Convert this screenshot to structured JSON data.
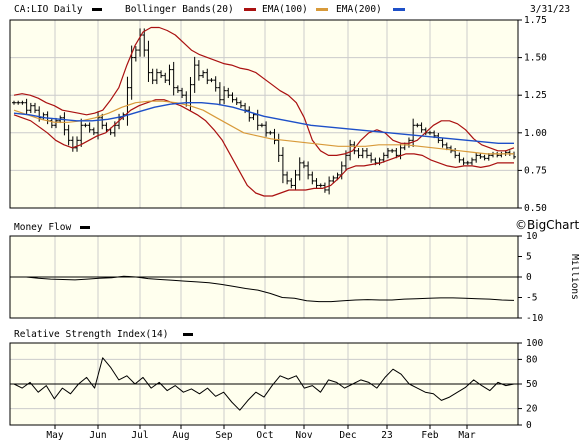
{
  "header": {
    "symbol_label": "CA:LIO Daily",
    "bb_label": "Bollinger Bands(20)",
    "ema100_label": "EMA(100)",
    "ema200_label": "EMA(200)",
    "date_label": "3/31/23"
  },
  "watermark": "©BigCharts.com",
  "colors": {
    "background": "#ffffee",
    "price": "#000000",
    "bollinger": "#aa1111",
    "ema100": "#d89a3a",
    "ema200": "#1e50c8",
    "frame": "#000000",
    "grid": "#cccccc"
  },
  "chart_data": [
    {
      "type": "line",
      "title": "CA:LIO Daily",
      "x_ticks": [
        "May",
        "Jun",
        "Jul",
        "Aug",
        "Sep",
        "Oct",
        "Nov",
        "Dec",
        "23",
        "Feb",
        "Mar"
      ],
      "y_ticks": [
        "1.75",
        "1.50",
        "1.25",
        "1.00",
        "0.75",
        "0.50"
      ],
      "ylim": [
        0.5,
        1.75
      ],
      "series": [
        {
          "name": "CA:LIO Daily",
          "style": "ohlc-bars",
          "values": [
            1.2,
            1.2,
            1.2,
            1.15,
            1.18,
            1.15,
            1.1,
            1.12,
            1.08,
            1.05,
            1.08,
            1.1,
            1.02,
            0.95,
            0.9,
            0.95,
            1.05,
            1.05,
            1.02,
            1.0,
            1.1,
            1.05,
            1.02,
            1.0,
            1.05,
            1.1,
            1.12,
            1.3,
            1.5,
            1.55,
            1.65,
            1.55,
            1.4,
            1.35,
            1.4,
            1.38,
            1.35,
            1.42,
            1.3,
            1.28,
            1.25,
            1.2,
            1.32,
            1.45,
            1.38,
            1.4,
            1.35,
            1.35,
            1.3,
            1.22,
            1.28,
            1.25,
            1.22,
            1.2,
            1.18,
            1.15,
            1.1,
            1.12,
            1.05,
            1.05,
            1.0,
            1.0,
            0.95,
            0.85,
            0.72,
            0.68,
            0.65,
            0.72,
            0.8,
            0.78,
            0.72,
            0.68,
            0.65,
            0.65,
            0.62,
            0.68,
            0.7,
            0.72,
            0.78,
            0.85,
            0.92,
            0.88,
            0.85,
            0.88,
            0.85,
            0.82,
            0.8,
            0.82,
            0.85,
            0.88,
            0.88,
            0.85,
            0.9,
            0.92,
            0.95,
            1.05,
            1.05,
            1.02,
            1.0,
            1.0,
            0.98,
            0.95,
            0.92,
            0.9,
            0.88,
            0.85,
            0.82,
            0.8,
            0.8,
            0.82,
            0.85,
            0.84,
            0.83,
            0.85,
            0.86,
            0.85,
            0.86,
            0.87,
            0.86,
            0.84
          ]
        },
        {
          "name": "Bollinger Bands(20) upper",
          "values": [
            1.25,
            1.26,
            1.25,
            1.23,
            1.2,
            1.18,
            1.15,
            1.14,
            1.13,
            1.12,
            1.13,
            1.15,
            1.22,
            1.3,
            1.45,
            1.58,
            1.67,
            1.7,
            1.7,
            1.68,
            1.65,
            1.6,
            1.55,
            1.52,
            1.5,
            1.48,
            1.46,
            1.45,
            1.43,
            1.42,
            1.4,
            1.36,
            1.32,
            1.28,
            1.25,
            1.2,
            1.1,
            0.95,
            0.88,
            0.85,
            0.85,
            0.86,
            0.88,
            0.95,
            1.0,
            1.02,
            1.0,
            0.95,
            0.93,
            0.93,
            0.95,
            1.0,
            1.05,
            1.08,
            1.08,
            1.06,
            1.02,
            0.96,
            0.92,
            0.9,
            0.88,
            0.88,
            0.9
          ]
        },
        {
          "name": "Bollinger Bands(20) lower",
          "values": [
            1.12,
            1.1,
            1.08,
            1.04,
            1.0,
            0.95,
            0.92,
            0.9,
            0.92,
            0.95,
            0.98,
            1.0,
            1.05,
            1.1,
            1.15,
            1.18,
            1.2,
            1.22,
            1.22,
            1.2,
            1.18,
            1.15,
            1.12,
            1.08,
            1.02,
            0.95,
            0.85,
            0.75,
            0.65,
            0.6,
            0.58,
            0.58,
            0.6,
            0.62,
            0.62,
            0.62,
            0.63,
            0.63,
            0.65,
            0.7,
            0.76,
            0.78,
            0.78,
            0.79,
            0.8,
            0.82,
            0.84,
            0.86,
            0.86,
            0.85,
            0.82,
            0.8,
            0.78,
            0.77,
            0.78,
            0.78,
            0.77,
            0.78,
            0.8,
            0.8,
            0.8
          ]
        },
        {
          "name": "EMA(100)",
          "values": [
            1.15,
            1.12,
            1.09,
            1.07,
            1.07,
            1.08,
            1.1,
            1.13,
            1.17,
            1.2,
            1.21,
            1.21,
            1.2,
            1.18,
            1.15,
            1.1,
            1.05,
            1.0,
            0.98,
            0.96,
            0.95,
            0.94,
            0.93,
            0.92,
            0.91,
            0.91,
            0.91,
            0.92,
            0.92,
            0.92,
            0.91,
            0.9,
            0.89,
            0.88,
            0.87,
            0.86,
            0.86,
            0.86
          ]
        },
        {
          "name": "EMA(200)",
          "values": [
            1.13,
            1.12,
            1.1,
            1.09,
            1.08,
            1.08,
            1.09,
            1.11,
            1.14,
            1.17,
            1.19,
            1.2,
            1.2,
            1.19,
            1.17,
            1.14,
            1.11,
            1.09,
            1.07,
            1.05,
            1.04,
            1.03,
            1.02,
            1.01,
            1.0,
            0.99,
            0.98,
            0.97,
            0.96,
            0.95,
            0.94,
            0.93,
            0.93
          ]
        }
      ]
    },
    {
      "type": "line",
      "title": "Money Flow",
      "y_ticks": [
        "10",
        "5",
        "0",
        "-5",
        "-10"
      ],
      "ylim": [
        -10,
        10
      ],
      "ylabel": "Millions",
      "series": [
        {
          "name": "Money Flow",
          "values": [
            0,
            0,
            -0.3,
            -0.5,
            -0.6,
            -0.7,
            -0.5,
            -0.3,
            -0.2,
            0.2,
            0,
            -0.4,
            -0.6,
            -0.8,
            -1.0,
            -1.2,
            -1.4,
            -1.8,
            -2.3,
            -2.8,
            -3.2,
            -4.0,
            -5.0,
            -5.2,
            -5.8,
            -6.0,
            -6.0,
            -5.8,
            -5.6,
            -5.5,
            -5.6,
            -5.6,
            -5.4,
            -5.3,
            -5.2,
            -5.1,
            -5.1,
            -5.2,
            -5.3,
            -5.4,
            -5.6,
            -5.7
          ]
        }
      ]
    },
    {
      "type": "line",
      "title": "Relative Strength Index(14)",
      "y_ticks": [
        "100",
        "80",
        "50",
        "20",
        "0"
      ],
      "ylim": [
        0,
        100
      ],
      "series": [
        {
          "name": "Relative Strength Index(14)",
          "values": [
            50,
            45,
            52,
            40,
            48,
            32,
            45,
            38,
            50,
            58,
            45,
            82,
            70,
            55,
            60,
            50,
            58,
            45,
            52,
            42,
            48,
            40,
            44,
            38,
            45,
            35,
            40,
            28,
            18,
            30,
            40,
            34,
            48,
            60,
            56,
            60,
            45,
            48,
            40,
            55,
            52,
            45,
            50,
            55,
            52,
            45,
            58,
            68,
            62,
            50,
            45,
            40,
            38,
            30,
            34,
            40,
            46,
            55,
            48,
            42,
            52,
            48,
            50
          ]
        }
      ]
    }
  ]
}
